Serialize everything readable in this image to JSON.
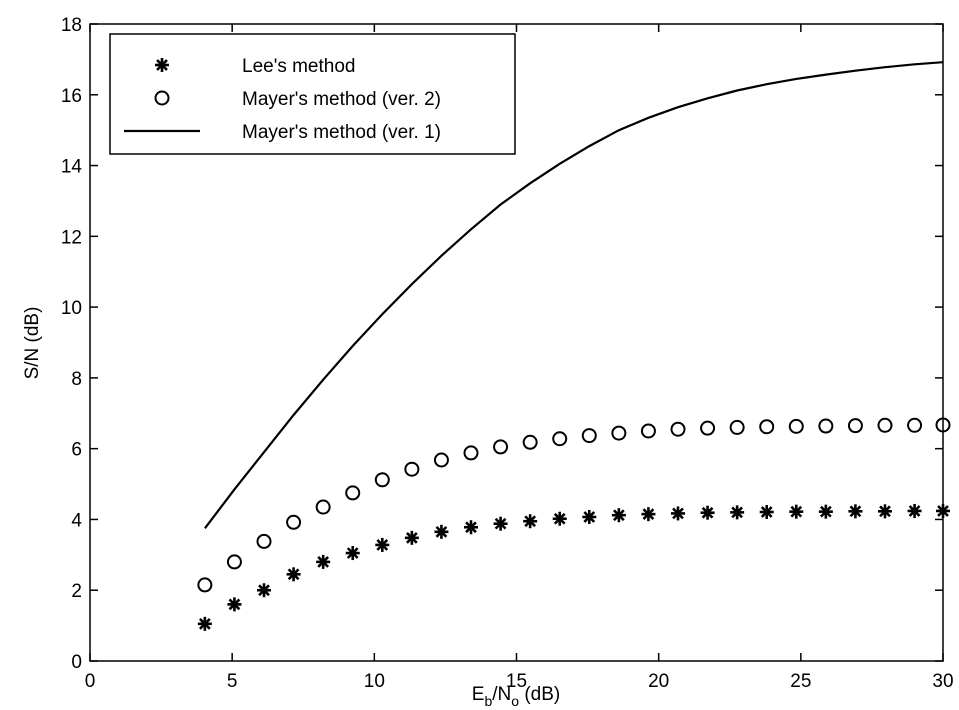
{
  "chart_data": {
    "type": "line",
    "xlabel": {
      "main": "E",
      "sub1": "b",
      "mid": "/N",
      "sub2": "o",
      "tail": " (dB)"
    },
    "ylabel": "S/N (dB)",
    "xlim": [
      0,
      30
    ],
    "ylim": [
      0,
      18
    ],
    "xticks": [
      "0",
      "5",
      "10",
      "15",
      "20",
      "25",
      "30"
    ],
    "yticks": [
      "0",
      "2",
      "4",
      "6",
      "8",
      "10",
      "12",
      "14",
      "16",
      "18"
    ],
    "grid": false,
    "legend_position": "top-left",
    "x": [
      4.04,
      5.08,
      6.12,
      7.16,
      8.2,
      9.24,
      10.28,
      11.32,
      12.36,
      13.4,
      14.44,
      15.48,
      16.52,
      17.56,
      18.6,
      19.64,
      20.68,
      21.72,
      22.76,
      23.8,
      24.84,
      25.88,
      26.92,
      27.96,
      29.0,
      30.0
    ],
    "series": [
      {
        "name": "Lee's method",
        "marker": "star",
        "values": [
          1.05,
          1.6,
          2.0,
          2.45,
          2.8,
          3.05,
          3.28,
          3.48,
          3.65,
          3.78,
          3.88,
          3.95,
          4.02,
          4.07,
          4.12,
          4.15,
          4.17,
          4.19,
          4.2,
          4.21,
          4.22,
          4.22,
          4.23,
          4.23,
          4.24,
          4.24
        ]
      },
      {
        "name": "Mayer's method (ver. 2)",
        "marker": "circle",
        "values": [
          2.15,
          2.8,
          3.38,
          3.92,
          4.35,
          4.75,
          5.12,
          5.42,
          5.68,
          5.88,
          6.05,
          6.18,
          6.28,
          6.37,
          6.44,
          6.5,
          6.55,
          6.58,
          6.6,
          6.62,
          6.63,
          6.64,
          6.65,
          6.66,
          6.66,
          6.67
        ]
      },
      {
        "name": "Mayer's method (ver. 1)",
        "marker": "line",
        "values": [
          3.75,
          4.85,
          5.9,
          6.95,
          7.95,
          8.9,
          9.8,
          10.65,
          11.45,
          12.2,
          12.9,
          13.5,
          14.05,
          14.55,
          15.0,
          15.35,
          15.65,
          15.9,
          16.12,
          16.3,
          16.45,
          16.57,
          16.68,
          16.78,
          16.86,
          16.92
        ]
      }
    ],
    "colors": {
      "line": "#000000",
      "background": "#ffffff"
    }
  }
}
